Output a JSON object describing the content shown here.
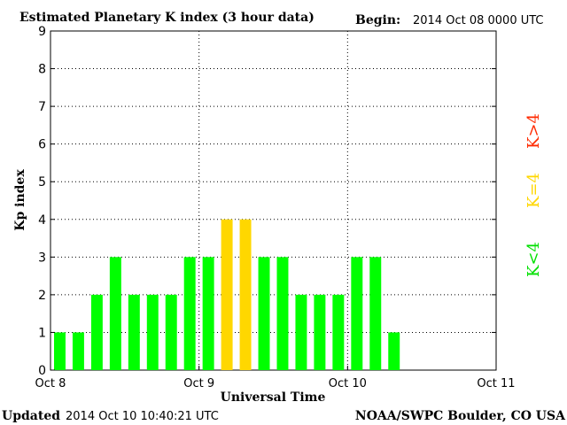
{
  "header": {
    "title": "Estimated Planetary K index (3 hour data)",
    "begin_label": "Begin:",
    "begin_value": "2014 Oct 08 0000 UTC"
  },
  "footer": {
    "updated_label": "Updated",
    "updated_value": "2014 Oct 10 10:40:21 UTC",
    "credit": "NOAA/SWPC Boulder, CO USA"
  },
  "legend": {
    "high": "K>4",
    "equal": "K=4",
    "low": "K<4"
  },
  "chart_data": {
    "type": "bar",
    "title": "Estimated Planetary K index (3 hour data)",
    "xlabel": "Universal Time",
    "ylabel": "Kp index",
    "ylim": [
      0,
      9
    ],
    "yticks": [
      "0",
      "1",
      "2",
      "3",
      "4",
      "5",
      "6",
      "7",
      "8",
      "9"
    ],
    "xticks": [
      "Oct 8",
      "Oct 9",
      "Oct 10",
      "Oct 11"
    ],
    "slots_per_day": 8,
    "days": 3,
    "values": [
      1,
      1,
      2,
      3,
      2,
      2,
      2,
      3,
      3,
      4,
      4,
      3,
      3,
      2,
      2,
      2,
      3,
      3,
      1
    ],
    "colors": {
      "low": "#00ff00",
      "equal": "#ffd700",
      "high": "#ff0000"
    },
    "grid": true
  }
}
